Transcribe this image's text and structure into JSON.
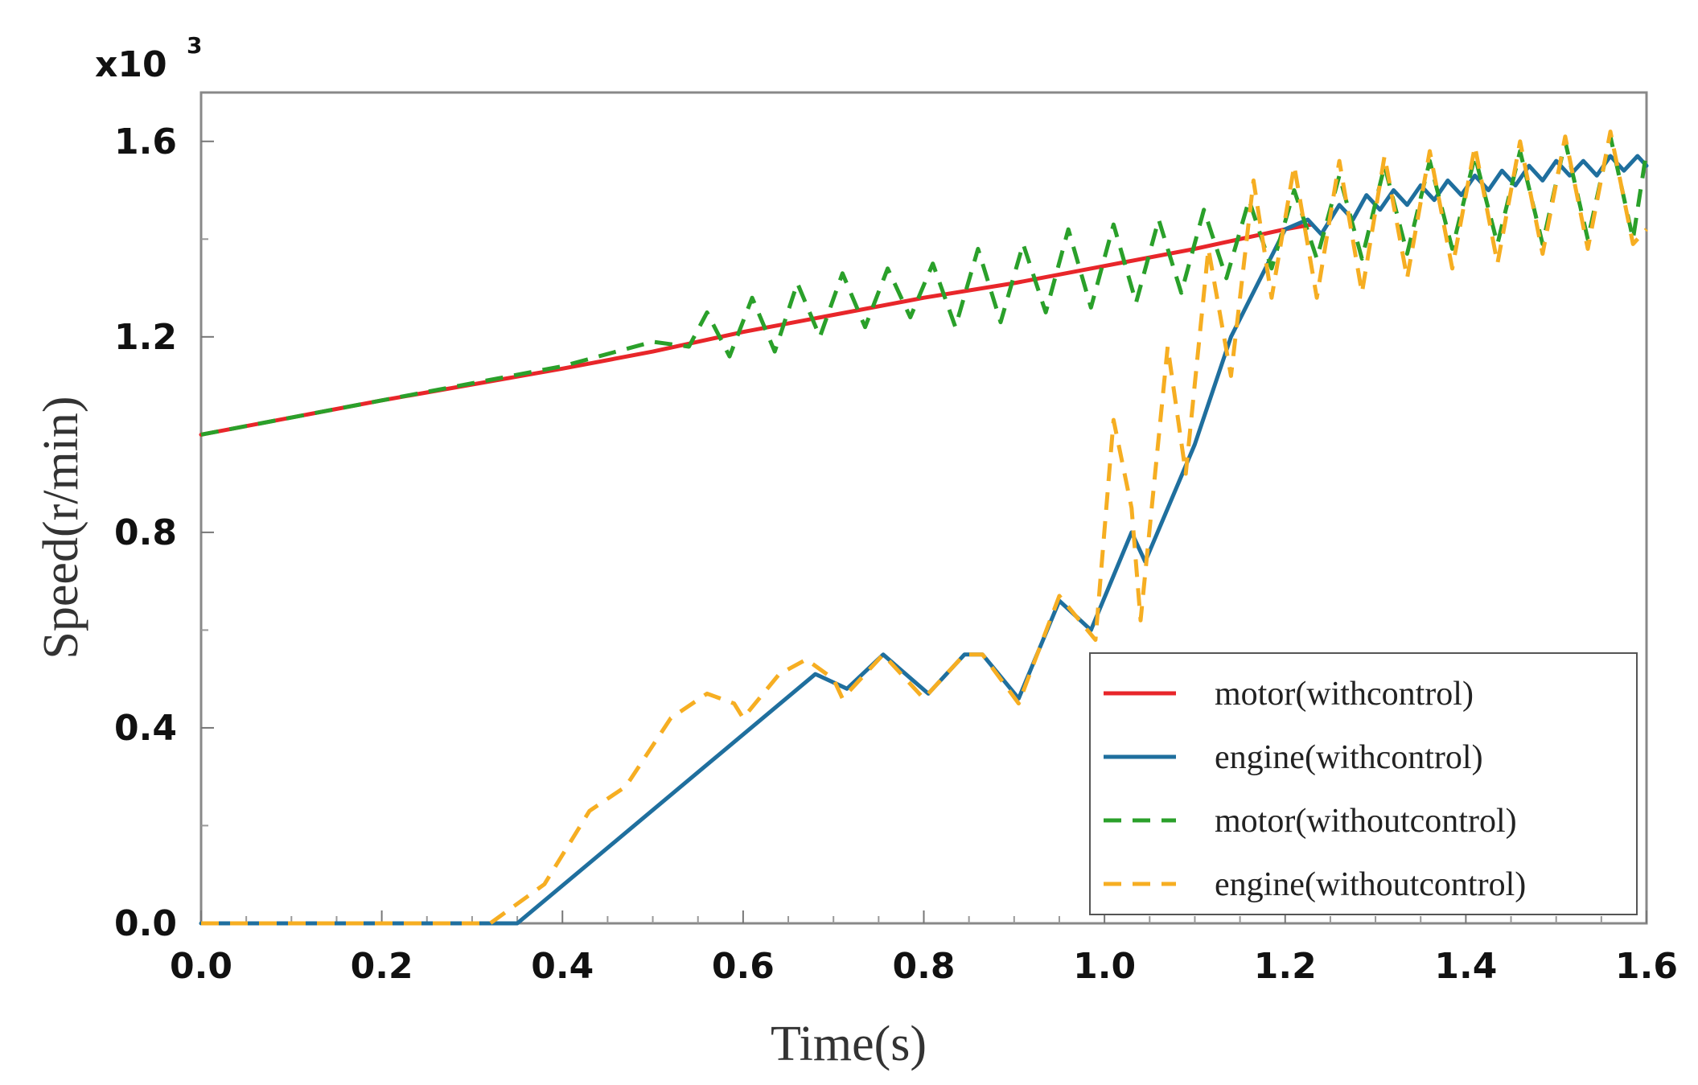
{
  "chart_data": {
    "type": "line",
    "title": "",
    "xlabel": "Time(s)",
    "ylabel": "Speed(r/min)",
    "y_multiplier": "x10",
    "y_multiplier_exp": "3",
    "xlim": [
      0.0,
      1.6
    ],
    "ylim": [
      0.0,
      1.7
    ],
    "x_ticks": [
      "0.0",
      "0.2",
      "0.4",
      "0.6",
      "0.8",
      "1.0",
      "1.2",
      "1.4",
      "1.6"
    ],
    "y_ticks": [
      "0.0",
      "0.4",
      "0.8",
      "1.2",
      "1.6"
    ],
    "grid": false,
    "legend_position": "bottom-right",
    "series": [
      {
        "name": "motor(withcontrol)",
        "color": "#e8262a",
        "dash": "solid",
        "points": [
          [
            0.0,
            1.0
          ],
          [
            0.2,
            1.07
          ],
          [
            0.4,
            1.135
          ],
          [
            0.5,
            1.17
          ],
          [
            0.6,
            1.21
          ],
          [
            0.7,
            1.245
          ],
          [
            0.8,
            1.28
          ],
          [
            0.9,
            1.31
          ],
          [
            1.0,
            1.345
          ],
          [
            1.1,
            1.38
          ],
          [
            1.2,
            1.42
          ],
          [
            1.23,
            1.43
          ]
        ]
      },
      {
        "name": "engine(withcontrol)",
        "color": "#1f6f9e",
        "dash": "solid",
        "points": [
          [
            0.0,
            0.0
          ],
          [
            0.35,
            0.0
          ],
          [
            0.68,
            0.51
          ],
          [
            0.715,
            0.48
          ],
          [
            0.755,
            0.55
          ],
          [
            0.805,
            0.47
          ],
          [
            0.845,
            0.55
          ],
          [
            0.865,
            0.55
          ],
          [
            0.905,
            0.46
          ],
          [
            0.95,
            0.66
          ],
          [
            0.985,
            0.6
          ],
          [
            1.03,
            0.8
          ],
          [
            1.045,
            0.74
          ],
          [
            1.1,
            0.98
          ],
          [
            1.14,
            1.2
          ],
          [
            1.2,
            1.42
          ],
          [
            1.225,
            1.44
          ],
          [
            1.24,
            1.41
          ],
          [
            1.26,
            1.47
          ],
          [
            1.275,
            1.44
          ],
          [
            1.29,
            1.49
          ],
          [
            1.305,
            1.46
          ],
          [
            1.32,
            1.5
          ],
          [
            1.335,
            1.47
          ],
          [
            1.35,
            1.51
          ],
          [
            1.365,
            1.48
          ],
          [
            1.38,
            1.52
          ],
          [
            1.395,
            1.49
          ],
          [
            1.41,
            1.53
          ],
          [
            1.425,
            1.5
          ],
          [
            1.44,
            1.54
          ],
          [
            1.455,
            1.51
          ],
          [
            1.47,
            1.55
          ],
          [
            1.485,
            1.52
          ],
          [
            1.5,
            1.56
          ],
          [
            1.515,
            1.53
          ],
          [
            1.53,
            1.56
          ],
          [
            1.545,
            1.53
          ],
          [
            1.56,
            1.57
          ],
          [
            1.575,
            1.54
          ],
          [
            1.59,
            1.57
          ],
          [
            1.6,
            1.55
          ]
        ]
      },
      {
        "name": "motor(withoutcontrol)",
        "color": "#2aa02a",
        "dash": "dashed",
        "points": [
          [
            0.0,
            1.0
          ],
          [
            0.2,
            1.07
          ],
          [
            0.4,
            1.14
          ],
          [
            0.5,
            1.19
          ],
          [
            0.54,
            1.18
          ],
          [
            0.56,
            1.25
          ],
          [
            0.585,
            1.16
          ],
          [
            0.61,
            1.28
          ],
          [
            0.635,
            1.17
          ],
          [
            0.66,
            1.31
          ],
          [
            0.685,
            1.2
          ],
          [
            0.71,
            1.33
          ],
          [
            0.735,
            1.22
          ],
          [
            0.76,
            1.34
          ],
          [
            0.785,
            1.24
          ],
          [
            0.81,
            1.35
          ],
          [
            0.835,
            1.22
          ],
          [
            0.86,
            1.38
          ],
          [
            0.885,
            1.23
          ],
          [
            0.91,
            1.39
          ],
          [
            0.935,
            1.25
          ],
          [
            0.96,
            1.42
          ],
          [
            0.985,
            1.26
          ],
          [
            1.01,
            1.43
          ],
          [
            1.035,
            1.27
          ],
          [
            1.06,
            1.44
          ],
          [
            1.085,
            1.29
          ],
          [
            1.11,
            1.46
          ],
          [
            1.135,
            1.32
          ],
          [
            1.16,
            1.48
          ],
          [
            1.185,
            1.34
          ],
          [
            1.21,
            1.5
          ],
          [
            1.235,
            1.36
          ],
          [
            1.26,
            1.53
          ],
          [
            1.285,
            1.36
          ],
          [
            1.31,
            1.55
          ],
          [
            1.335,
            1.37
          ],
          [
            1.36,
            1.56
          ],
          [
            1.385,
            1.38
          ],
          [
            1.41,
            1.57
          ],
          [
            1.435,
            1.39
          ],
          [
            1.46,
            1.58
          ],
          [
            1.485,
            1.39
          ],
          [
            1.51,
            1.6
          ],
          [
            1.535,
            1.4
          ],
          [
            1.56,
            1.61
          ],
          [
            1.585,
            1.4
          ],
          [
            1.6,
            1.58
          ]
        ]
      },
      {
        "name": "engine(withoutcontrol)",
        "color": "#f6ae22",
        "dash": "dashed",
        "points": [
          [
            0.0,
            0.0
          ],
          [
            0.32,
            0.0
          ],
          [
            0.38,
            0.08
          ],
          [
            0.43,
            0.23
          ],
          [
            0.47,
            0.28
          ],
          [
            0.52,
            0.42
          ],
          [
            0.56,
            0.47
          ],
          [
            0.59,
            0.45
          ],
          [
            0.6,
            0.42
          ],
          [
            0.64,
            0.51
          ],
          [
            0.67,
            0.54
          ],
          [
            0.7,
            0.5
          ],
          [
            0.71,
            0.46
          ],
          [
            0.755,
            0.55
          ],
          [
            0.8,
            0.46
          ],
          [
            0.845,
            0.55
          ],
          [
            0.865,
            0.55
          ],
          [
            0.905,
            0.45
          ],
          [
            0.95,
            0.67
          ],
          [
            0.99,
            0.58
          ],
          [
            1.01,
            1.03
          ],
          [
            1.03,
            0.85
          ],
          [
            1.04,
            0.62
          ],
          [
            1.07,
            1.18
          ],
          [
            1.09,
            0.92
          ],
          [
            1.115,
            1.38
          ],
          [
            1.14,
            1.12
          ],
          [
            1.165,
            1.52
          ],
          [
            1.185,
            1.28
          ],
          [
            1.21,
            1.55
          ],
          [
            1.235,
            1.28
          ],
          [
            1.26,
            1.56
          ],
          [
            1.285,
            1.29
          ],
          [
            1.31,
            1.57
          ],
          [
            1.335,
            1.32
          ],
          [
            1.36,
            1.58
          ],
          [
            1.385,
            1.34
          ],
          [
            1.41,
            1.59
          ],
          [
            1.435,
            1.35
          ],
          [
            1.46,
            1.6
          ],
          [
            1.485,
            1.37
          ],
          [
            1.51,
            1.61
          ],
          [
            1.535,
            1.38
          ],
          [
            1.56,
            1.62
          ],
          [
            1.585,
            1.39
          ],
          [
            1.6,
            1.42
          ]
        ]
      }
    ]
  }
}
